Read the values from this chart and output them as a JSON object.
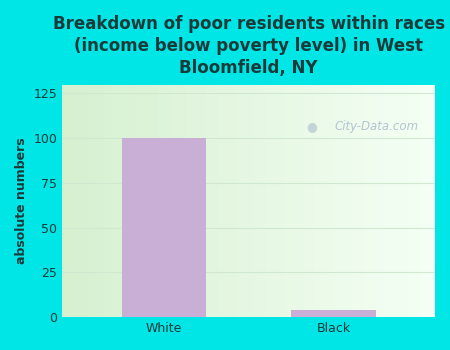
{
  "categories": [
    "White",
    "Black"
  ],
  "values": [
    100,
    4
  ],
  "bar_color": "#c9aed6",
  "title": "Breakdown of poor residents within races\n(income below poverty level) in West\nBloomfield, NY",
  "ylabel": "absolute numbers",
  "ylim": [
    0,
    130
  ],
  "yticks": [
    0,
    25,
    50,
    75,
    100,
    125
  ],
  "title_color": "#1a3a3a",
  "title_fontsize": 12,
  "label_fontsize": 9,
  "tick_fontsize": 9,
  "background_color": "#00e5e5",
  "plot_bg_color": "#e8f5e2",
  "watermark_text": "City-Data.com",
  "watermark_color": "#aabbcc",
  "grid_color": "#d0e8d0",
  "bar_width": 0.5,
  "xlim": [
    -0.6,
    1.6
  ]
}
